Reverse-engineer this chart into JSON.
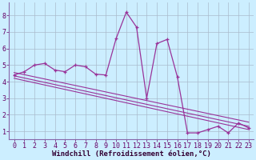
{
  "bg_color": "#cceeff",
  "grid_color": "#aabbcc",
  "line_color": "#993399",
  "marker_color": "#993399",
  "xlabel": "Windchill (Refroidissement éolien,°C)",
  "xlabel_fontsize": 6.5,
  "xlim": [
    -0.5,
    23.5
  ],
  "ylim": [
    0.5,
    8.8
  ],
  "xticks": [
    0,
    1,
    2,
    3,
    4,
    5,
    6,
    7,
    8,
    9,
    10,
    11,
    12,
    13,
    14,
    15,
    16,
    17,
    18,
    19,
    20,
    21,
    22,
    23
  ],
  "yticks": [
    1,
    2,
    3,
    4,
    5,
    6,
    7,
    8
  ],
  "tick_fontsize": 6.0,
  "series1_x": [
    0,
    1,
    2,
    3,
    4,
    5,
    6,
    7,
    8,
    9,
    10,
    11,
    12,
    13,
    14,
    15,
    16,
    17,
    18,
    19,
    20,
    21,
    22,
    23
  ],
  "series1_y": [
    4.4,
    4.6,
    5.0,
    5.1,
    4.7,
    4.6,
    5.0,
    4.9,
    4.45,
    4.4,
    6.6,
    8.2,
    7.3,
    3.0,
    6.3,
    6.55,
    4.3,
    0.9,
    0.9,
    1.1,
    1.3,
    0.9,
    1.5,
    1.2
  ],
  "series2_x": [
    0,
    23
  ],
  "series2_y": [
    4.55,
    1.55
  ],
  "series3_x": [
    0,
    23
  ],
  "series3_y": [
    4.35,
    1.3
  ],
  "series4_x": [
    0,
    23
  ],
  "series4_y": [
    4.2,
    1.1
  ]
}
